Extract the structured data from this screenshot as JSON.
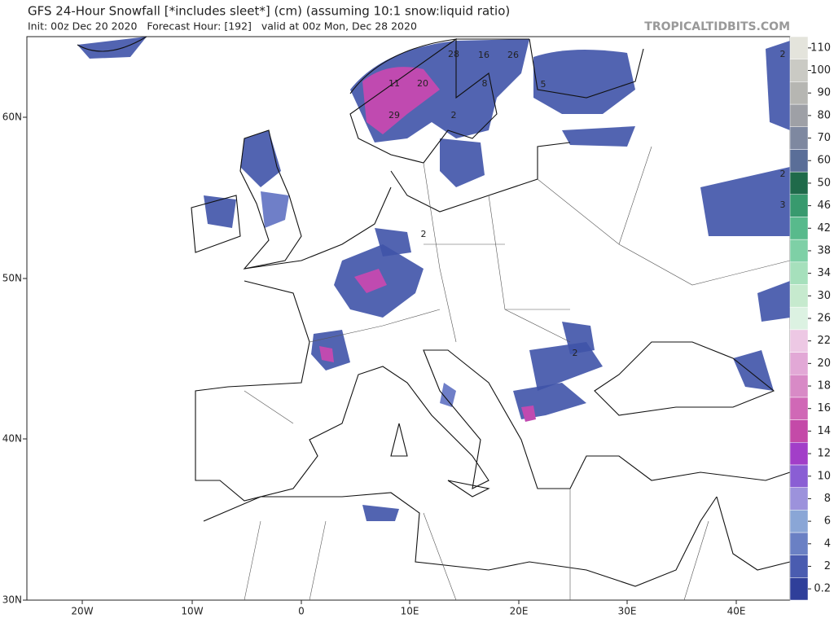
{
  "header": {
    "title": "GFS 24-Hour Snowfall [*includes sleet*] (cm) (assuming 10:1 snow:liquid ratio)",
    "subtitle": "Init: 00z Dec 20 2020   Forecast Hour: [192]   valid at 00z Mon, Dec 28 2020",
    "watermark": "TROPICALTIDBITS.COM"
  },
  "map": {
    "lon_labels": [
      "20W",
      "10W",
      "0",
      "10E",
      "20E",
      "30E",
      "40E"
    ],
    "lat_labels": [
      "30N",
      "40N",
      "50N",
      "60N"
    ],
    "point_labels": [
      28,
      16,
      26,
      11,
      20,
      8,
      5,
      29,
      2,
      2,
      2,
      2,
      2,
      3
    ]
  },
  "colorbar": {
    "levels": [
      0.2,
      2,
      4,
      6,
      8,
      10,
      12,
      14,
      16,
      18,
      20,
      22,
      26,
      30,
      34,
      38,
      42,
      46,
      50,
      60,
      70,
      80,
      90,
      100,
      110
    ],
    "colors": [
      "#2f3f9a",
      "#4a5cb0",
      "#6a80c4",
      "#8aa6d6",
      "#9c92dc",
      "#8a5ed4",
      "#a23ec8",
      "#c44aa8",
      "#d068b6",
      "#d88ac6",
      "#e2a8d6",
      "#edc8e4",
      "#dcf2e2",
      "#c6eace",
      "#a6e0bc",
      "#7ed0a6",
      "#58ba8c",
      "#389a6e",
      "#1f6a4a",
      "#5a6e98",
      "#7e88a0",
      "#9ea0a6",
      "#b6b6b2",
      "#cacac4",
      "#e4e4dc"
    ]
  }
}
